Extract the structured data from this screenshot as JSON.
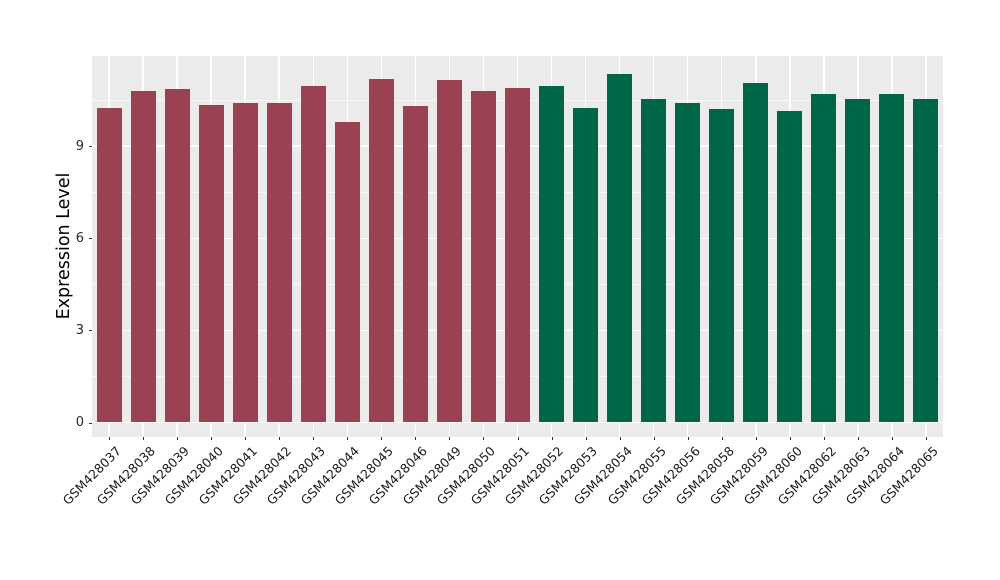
{
  "figure": {
    "background": "#FFFFFF",
    "panel_background": "#EBEBEB",
    "grid_color": "#FFFFFF"
  },
  "chart_data": {
    "type": "bar",
    "title": "",
    "xlabel": "",
    "ylabel": "Expression Level",
    "legend": "none",
    "grid": true,
    "categories": [
      "GSM428037",
      "GSM428038",
      "GSM428039",
      "GSM428040",
      "GSM428041",
      "GSM428042",
      "GSM428043",
      "GSM428044",
      "GSM428045",
      "GSM428046",
      "GSM428049",
      "GSM428050",
      "GSM428051",
      "GSM428052",
      "GSM428053",
      "GSM428054",
      "GSM428055",
      "GSM428056",
      "GSM428058",
      "GSM428059",
      "GSM428060",
      "GSM428062",
      "GSM428063",
      "GSM428064",
      "GSM428065"
    ],
    "values": [
      10.25,
      10.8,
      10.85,
      10.35,
      10.4,
      10.4,
      10.95,
      9.8,
      11.2,
      10.3,
      11.15,
      10.8,
      10.9,
      10.95,
      10.25,
      11.35,
      10.55,
      10.4,
      10.2,
      11.05,
      10.15,
      10.7,
      10.55,
      10.7,
      10.55
    ],
    "group_of_bar": [
      0,
      0,
      0,
      0,
      0,
      0,
      0,
      0,
      0,
      0,
      0,
      0,
      0,
      1,
      1,
      1,
      1,
      1,
      1,
      1,
      1,
      1,
      1,
      1,
      1
    ],
    "group_colors": [
      "#9A4252",
      "#006648"
    ],
    "y_ticks": [
      0,
      3,
      6,
      9
    ],
    "y_minor_ticks": [
      1.5,
      4.5,
      7.5,
      10.5
    ],
    "ylim": [
      0,
      11.35
    ],
    "axis_range": [
      -0.47,
      11.94
    ],
    "x_tick_rotation_deg": 45
  }
}
